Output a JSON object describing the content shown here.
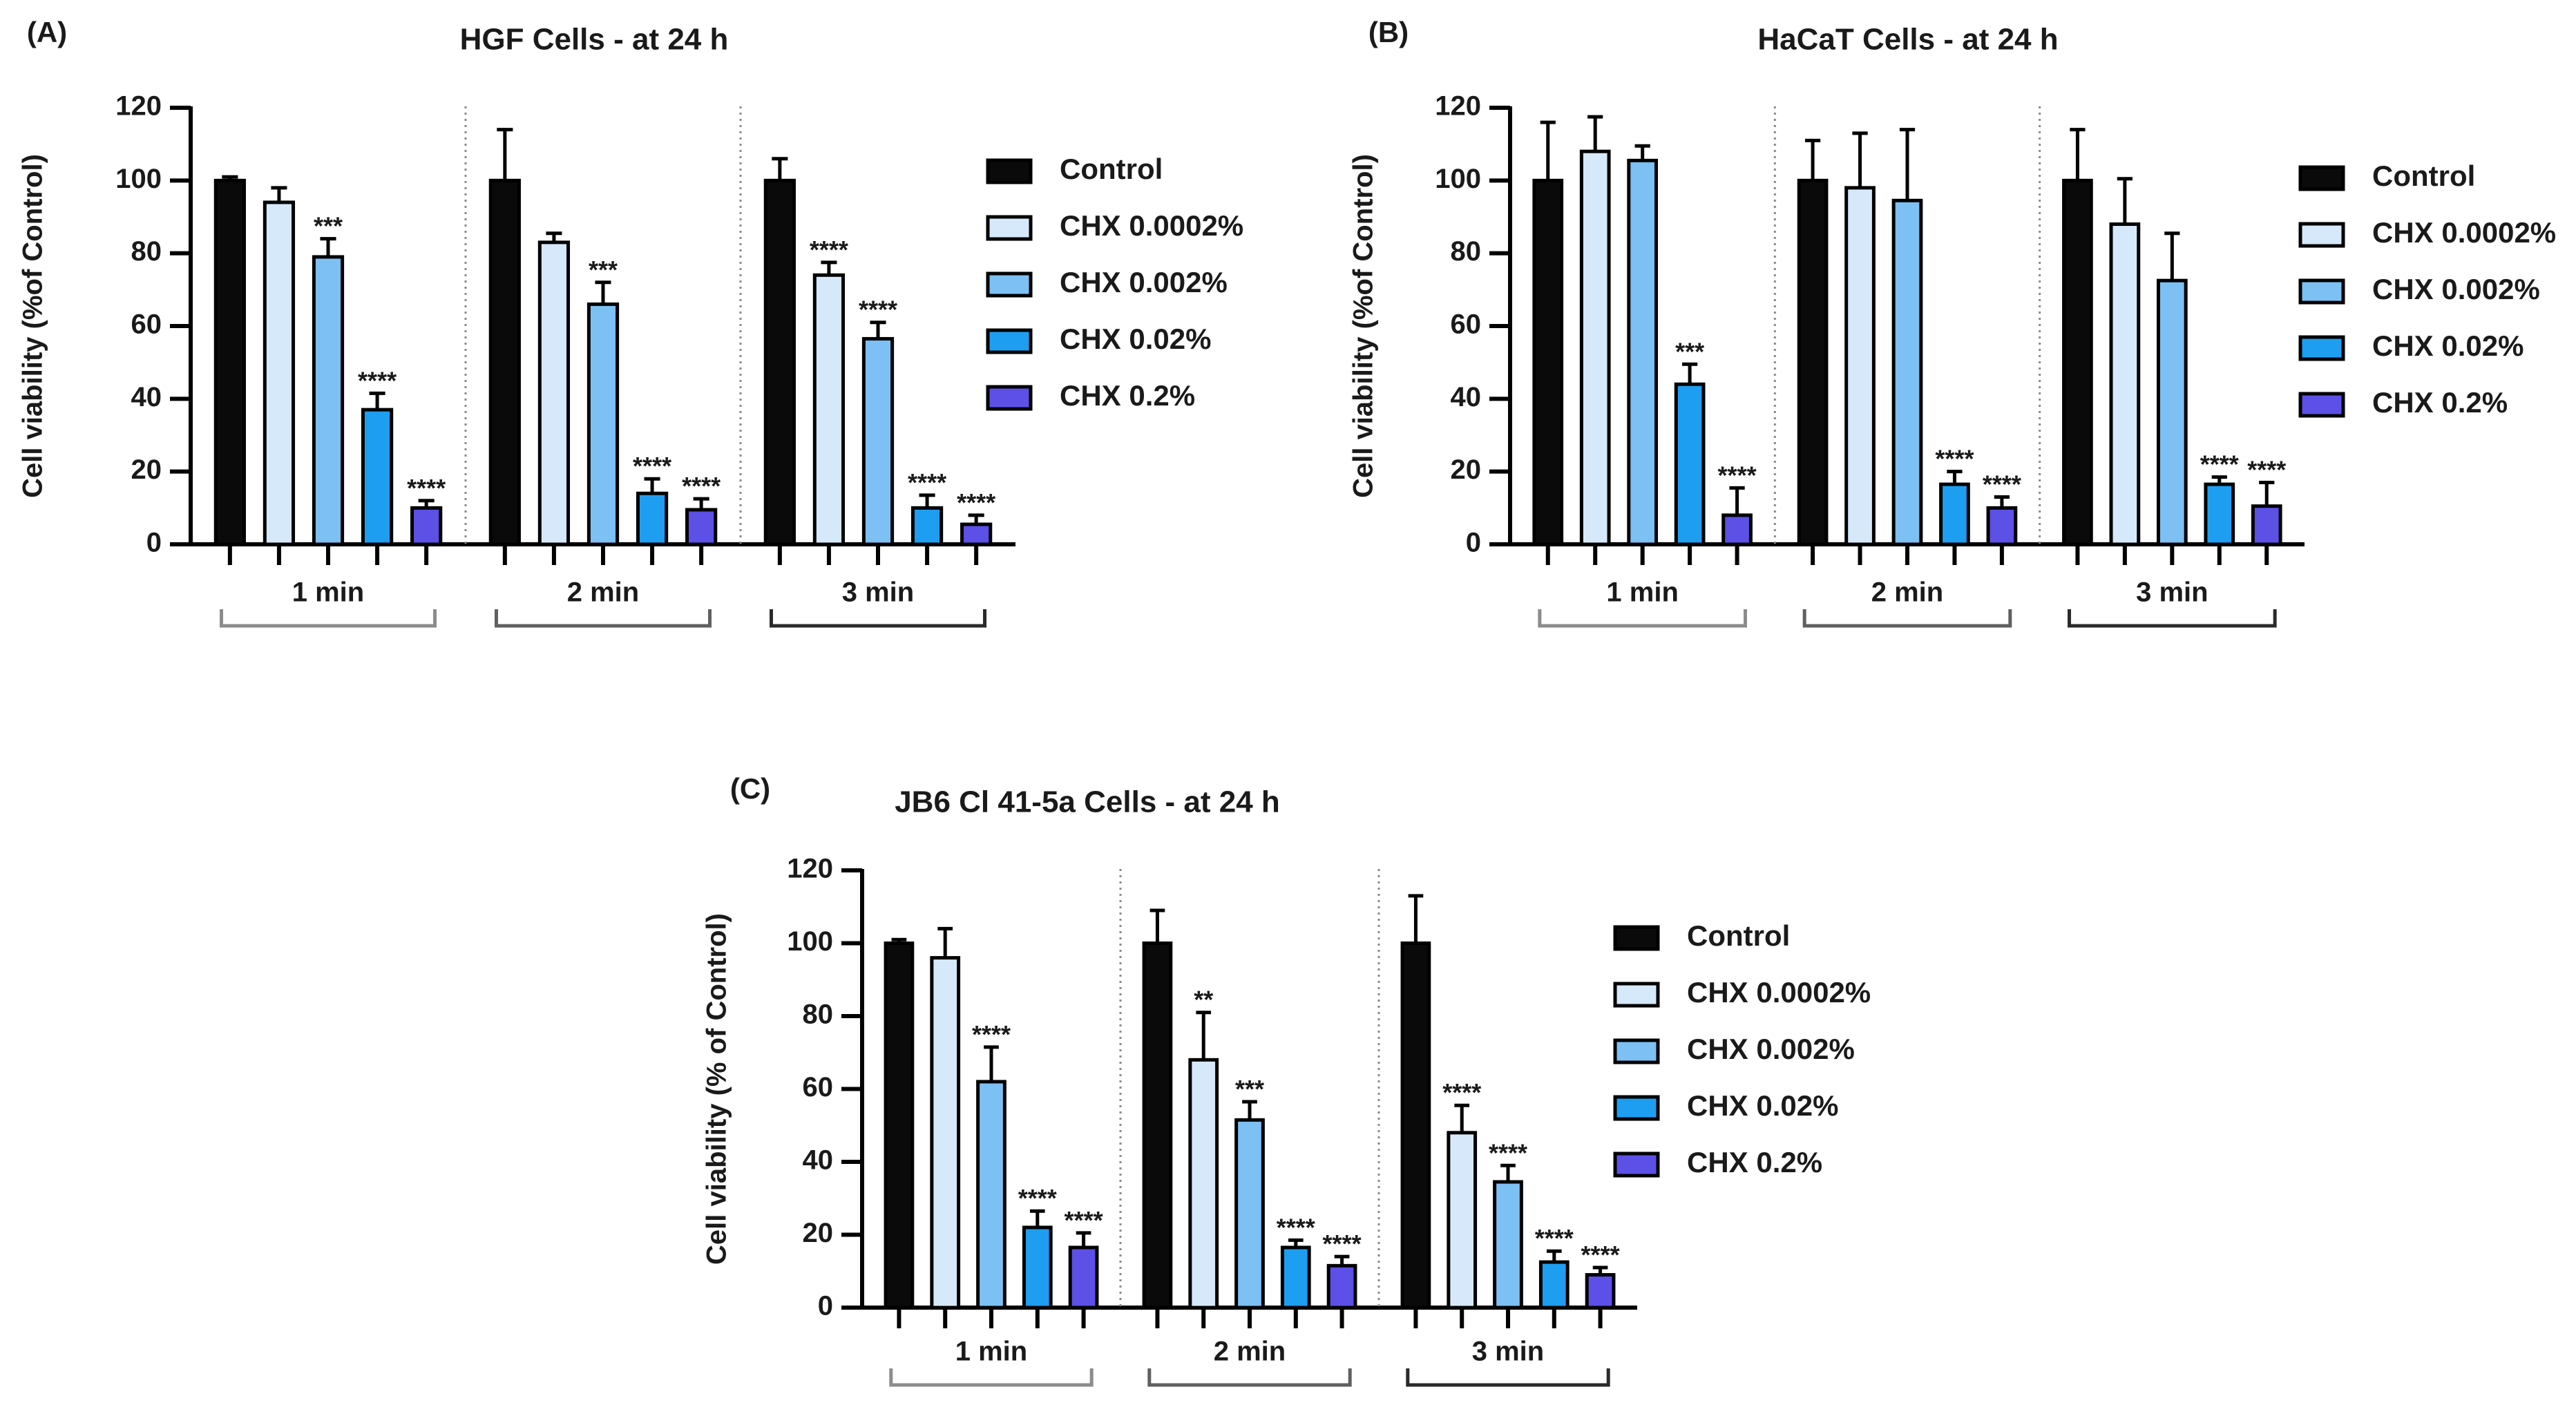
{
  "colors": {
    "control": "#0a0a0a",
    "chx_00002": "#d6e9fb",
    "chx_0002": "#7cc0f4",
    "chx_002": "#1e9ef0",
    "chx_02": "#5c50e6",
    "axis": "#000000",
    "divider": "#8a8a8a",
    "bracket_1": "#8c8c8c",
    "bracket_2": "#606060",
    "bracket_3": "#2a2a2a"
  },
  "chart_data": [
    {
      "type": "bar",
      "panel_label": "(A)",
      "title": "HGF Cells - at 24 h",
      "ylabel": "Cell viability (%of Control)",
      "xlabel": "",
      "ylim": [
        0,
        120
      ],
      "yticks": [
        "0",
        "20",
        "40",
        "60",
        "80",
        "100",
        "120"
      ],
      "groups": [
        "1 min",
        "2 min",
        "3 min"
      ],
      "series": [
        {
          "name": "Control",
          "values": [
            100,
            100,
            100
          ],
          "errors": [
            1,
            14,
            6
          ],
          "stars": [
            "",
            "",
            ""
          ]
        },
        {
          "name": "CHX 0.0002%",
          "values": [
            94,
            83,
            74
          ],
          "errors": [
            4,
            2.5,
            3.5
          ],
          "stars": [
            "",
            "",
            "****"
          ]
        },
        {
          "name": "CHX 0.002%",
          "values": [
            79,
            66,
            56.5
          ],
          "errors": [
            5,
            6,
            4.5
          ],
          "stars": [
            "***",
            "***",
            "****"
          ]
        },
        {
          "name": "CHX 0.02%",
          "values": [
            37,
            14,
            10
          ],
          "errors": [
            4.5,
            4,
            3.5
          ],
          "stars": [
            "****",
            "****",
            "****"
          ]
        },
        {
          "name": "CHX 0.2%",
          "values": [
            10,
            9.5,
            5.5
          ],
          "errors": [
            2,
            3,
            2.5
          ],
          "stars": [
            "****",
            "****",
            "****"
          ]
        }
      ]
    },
    {
      "type": "bar",
      "panel_label": "(B)",
      "title": "HaCaT Cells - at 24 h",
      "ylabel": "Cell viability (%of Control)",
      "xlabel": "",
      "ylim": [
        0,
        120
      ],
      "yticks": [
        "0",
        "20",
        "40",
        "60",
        "80",
        "100",
        "120"
      ],
      "groups": [
        "1 min",
        "2 min",
        "3 min"
      ],
      "series": [
        {
          "name": "Control",
          "values": [
            100,
            100,
            100
          ],
          "errors": [
            16,
            11,
            14
          ],
          "stars": [
            "",
            "",
            ""
          ]
        },
        {
          "name": "CHX 0.0002%",
          "values": [
            108,
            98,
            88
          ],
          "errors": [
            9.5,
            15,
            12.5
          ],
          "stars": [
            "",
            "",
            ""
          ]
        },
        {
          "name": "CHX 0.002%",
          "values": [
            105.5,
            94.5,
            72.5
          ],
          "errors": [
            4,
            19.5,
            13
          ],
          "stars": [
            "",
            "",
            ""
          ]
        },
        {
          "name": "CHX 0.02%",
          "values": [
            44,
            16.5,
            16.5
          ],
          "errors": [
            5.5,
            3.5,
            2
          ],
          "stars": [
            "***",
            "****",
            "****"
          ]
        },
        {
          "name": "CHX 0.2%",
          "values": [
            8,
            10,
            10.5
          ],
          "errors": [
            7.5,
            3,
            6.5
          ],
          "stars": [
            "****",
            "****",
            "****"
          ]
        }
      ]
    },
    {
      "type": "bar",
      "panel_label": "(C)",
      "title": "JB6 Cl 41-5a Cells - at 24 h",
      "ylabel": "Cell viability (% of Control)",
      "xlabel": "",
      "ylim": [
        0,
        120
      ],
      "yticks": [
        "0",
        "20",
        "40",
        "60",
        "80",
        "100",
        "120"
      ],
      "groups": [
        "1 min",
        "2 min",
        "3 min"
      ],
      "series": [
        {
          "name": "Control",
          "values": [
            100,
            100,
            100
          ],
          "errors": [
            1,
            9,
            13
          ],
          "stars": [
            "",
            "",
            ""
          ]
        },
        {
          "name": "CHX 0.0002%",
          "values": [
            96,
            68,
            48
          ],
          "errors": [
            8,
            13,
            7.5
          ],
          "stars": [
            "",
            "**",
            "****"
          ]
        },
        {
          "name": "CHX 0.002%",
          "values": [
            62,
            51.5,
            34.5
          ],
          "errors": [
            9.5,
            5,
            4.5
          ],
          "stars": [
            "****",
            "***",
            "****"
          ]
        },
        {
          "name": "CHX 0.02%",
          "values": [
            22,
            16.5,
            12.5
          ],
          "errors": [
            4.5,
            2,
            3
          ],
          "stars": [
            "****",
            "****",
            "****"
          ]
        },
        {
          "name": "CHX 0.2%",
          "values": [
            16.5,
            11.5,
            9
          ],
          "errors": [
            4,
            2.5,
            2
          ],
          "stars": [
            "****",
            "****",
            "****"
          ]
        }
      ]
    }
  ]
}
